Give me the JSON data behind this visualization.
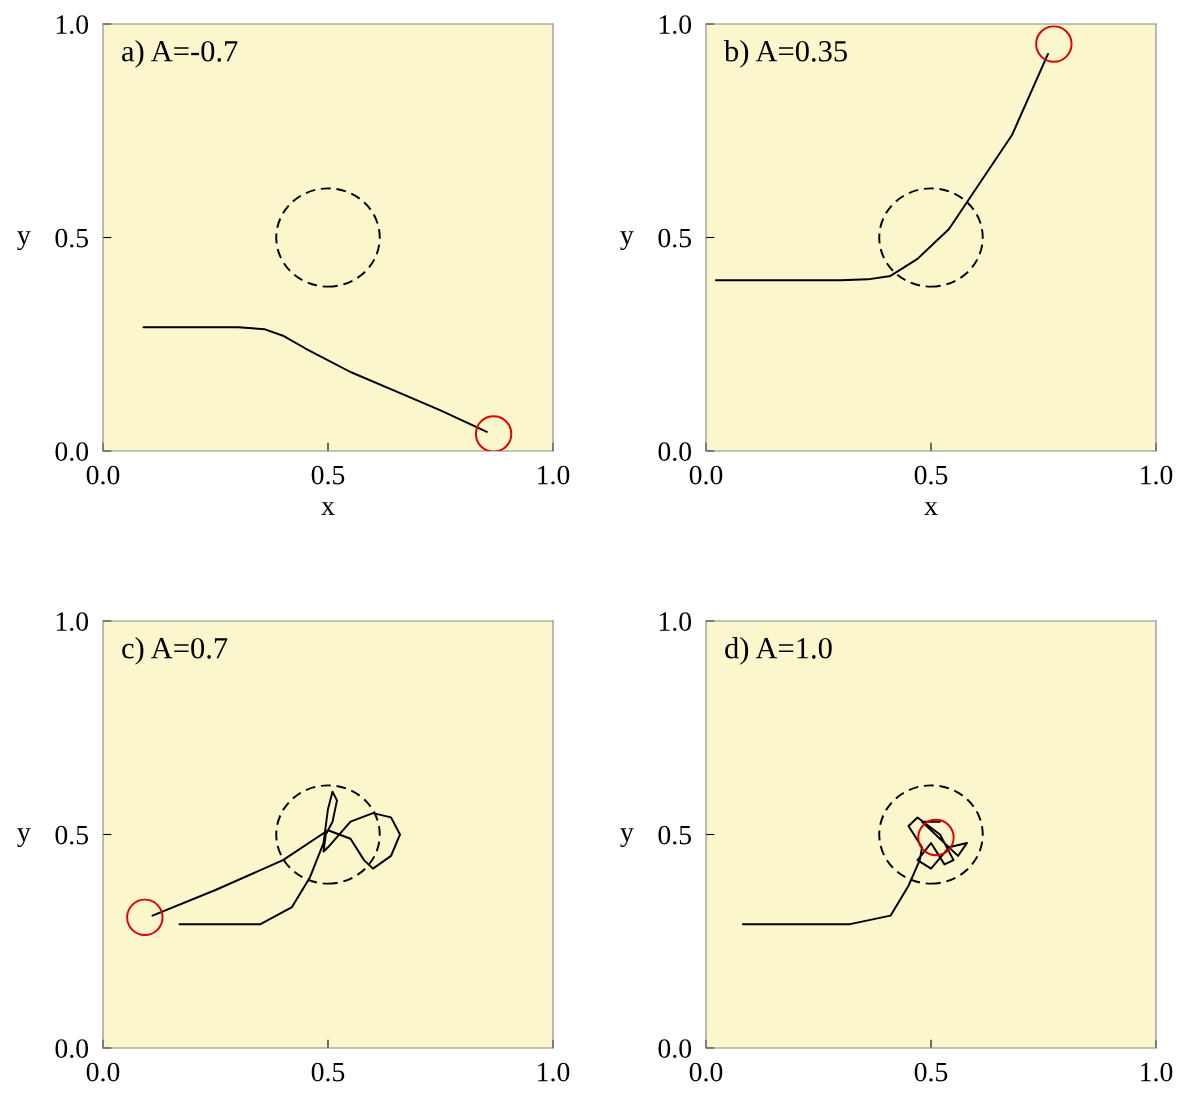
{
  "chart_data": [
    {
      "type": "line",
      "title": "a) A=-0.7",
      "xlabel": "x",
      "ylabel": "y",
      "xlim": [
        0,
        1
      ],
      "ylim": [
        0,
        1
      ],
      "xticks": [
        {
          "value": 0,
          "label": "0.0"
        },
        {
          "value": 0.5,
          "label": "0.5"
        },
        {
          "value": 1,
          "label": "1.0"
        }
      ],
      "yticks": [
        {
          "value": 0,
          "label": "0.0"
        },
        {
          "value": 0.5,
          "label": "0.5"
        },
        {
          "value": 1,
          "label": "1.0"
        }
      ],
      "grid": false,
      "legend": false,
      "series": [
        {
          "color": "#000000",
          "line_style": "solid",
          "x": [
            0.09,
            0.3,
            0.36,
            0.4,
            0.45,
            0.55,
            0.65,
            0.75,
            0.853
          ],
          "values": [
            0.29,
            0.29,
            0.285,
            0.27,
            0.24,
            0.185,
            0.14,
            0.095,
            0.045
          ]
        },
        {
          "type": "scatter",
          "color": "#e00000",
          "marker": "circle",
          "x": [
            0.868
          ],
          "values": [
            0.04
          ]
        }
      ]
    },
    {
      "type": "line",
      "title": "b) A=0.35",
      "xlabel": "x",
      "ylabel": "y",
      "xlim": [
        0,
        1
      ],
      "ylim": [
        0,
        1
      ],
      "xticks": [
        {
          "value": 0,
          "label": "0.0"
        },
        {
          "value": 0.5,
          "label": "0.5"
        },
        {
          "value": 1,
          "label": "1.0"
        }
      ],
      "yticks": [
        {
          "value": 0,
          "label": "0.0"
        },
        {
          "value": 0.5,
          "label": "0.5"
        },
        {
          "value": 1,
          "label": "1.0"
        }
      ],
      "grid": false,
      "legend": false,
      "series": [
        {
          "color": "#000000",
          "line_style": "solid",
          "x": [
            0.022,
            0.3,
            0.36,
            0.41,
            0.47,
            0.54,
            0.61,
            0.68,
            0.76
          ],
          "values": [
            0.4,
            0.4,
            0.402,
            0.41,
            0.45,
            0.52,
            0.63,
            0.74,
            0.93
          ]
        },
        {
          "type": "scatter",
          "color": "#e00000",
          "marker": "circle",
          "x": [
            0.773
          ],
          "values": [
            0.953
          ]
        }
      ]
    },
    {
      "type": "line",
      "title": "c) A=0.7",
      "ylabel": "y",
      "xlim": [
        0,
        1
      ],
      "ylim": [
        0,
        1
      ],
      "xticks": [
        {
          "value": 0,
          "label": "0.0"
        },
        {
          "value": 0.5,
          "label": "0.5"
        },
        {
          "value": 1,
          "label": "1.0"
        }
      ],
      "yticks": [
        {
          "value": 0,
          "label": "0.0"
        },
        {
          "value": 0.5,
          "label": "0.5"
        },
        {
          "value": 1,
          "label": "1.0"
        }
      ],
      "grid": false,
      "legend": false,
      "series": [
        {
          "color": "#000000",
          "line_style": "solid",
          "x": [
            0.17,
            0.35,
            0.42,
            0.46,
            0.49,
            0.5,
            0.51,
            0.52,
            0.51,
            0.495,
            0.49,
            0.5,
            0.55,
            0.6,
            0.64,
            0.66,
            0.64,
            0.6,
            0.58,
            0.55,
            0.5,
            0.4,
            0.25,
            0.11
          ],
          "values": [
            0.29,
            0.29,
            0.33,
            0.4,
            0.48,
            0.56,
            0.6,
            0.58,
            0.53,
            0.5,
            0.46,
            0.47,
            0.53,
            0.55,
            0.54,
            0.5,
            0.45,
            0.42,
            0.44,
            0.49,
            0.51,
            0.44,
            0.37,
            0.31
          ]
        },
        {
          "type": "scatter",
          "color": "#e00000",
          "marker": "circle",
          "x": [
            0.093
          ],
          "values": [
            0.306
          ]
        }
      ]
    },
    {
      "type": "line",
      "title": "d) A=1.0",
      "ylabel": "y",
      "xlim": [
        0,
        1
      ],
      "ylim": [
        0,
        1
      ],
      "xticks": [
        {
          "value": 0,
          "label": "0.0"
        },
        {
          "value": 0.5,
          "label": "0.5"
        },
        {
          "value": 1,
          "label": "1.0"
        }
      ],
      "yticks": [
        {
          "value": 0,
          "label": "0.0"
        },
        {
          "value": 0.5,
          "label": "0.5"
        },
        {
          "value": 1,
          "label": "1.0"
        }
      ],
      "grid": false,
      "legend": false,
      "series": [
        {
          "color": "#000000",
          "line_style": "solid",
          "x": [
            0.082,
            0.32,
            0.41,
            0.45,
            0.475,
            0.48,
            0.45,
            0.47,
            0.52,
            0.55,
            0.53,
            0.5,
            0.47,
            0.5,
            0.54,
            0.58,
            0.56,
            0.51,
            0.48,
            0.52
          ],
          "values": [
            0.29,
            0.29,
            0.31,
            0.38,
            0.44,
            0.47,
            0.52,
            0.54,
            0.5,
            0.44,
            0.43,
            0.48,
            0.44,
            0.42,
            0.47,
            0.48,
            0.45,
            0.5,
            0.53,
            0.53
          ]
        },
        {
          "type": "scatter",
          "color": "#e00000",
          "marker": "circle",
          "x": [
            0.511
          ],
          "values": [
            0.493
          ]
        }
      ]
    }
  ]
}
